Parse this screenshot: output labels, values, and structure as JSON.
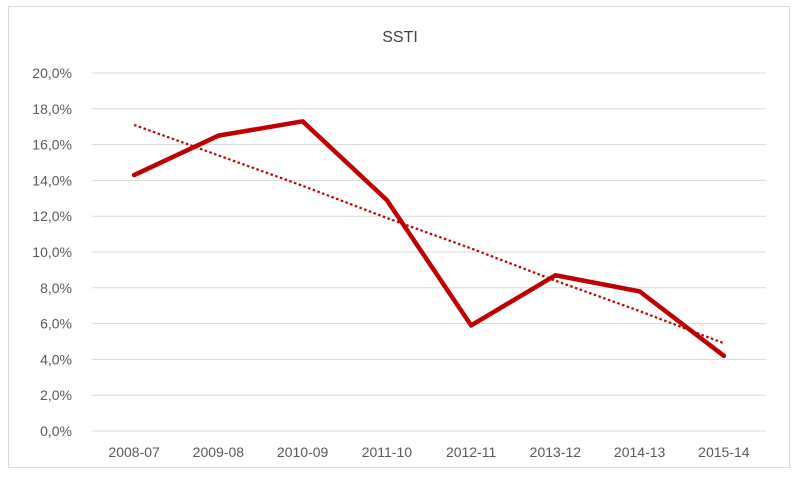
{
  "chart_data": {
    "type": "line",
    "title": "SSTI",
    "xlabel": "",
    "ylabel": "",
    "categories": [
      "2008-07",
      "2009-08",
      "2010-09",
      "2011-10",
      "2012-11",
      "2013-12",
      "2014-13",
      "2015-14"
    ],
    "series": [
      {
        "values": [
          14.3,
          16.5,
          17.3,
          12.9,
          5.9,
          8.7,
          7.8,
          4.2
        ],
        "color": "#c00000",
        "style": "solid"
      },
      {
        "values": [
          17.1,
          15.4,
          13.7,
          11.9,
          10.2,
          8.4,
          6.7,
          4.9
        ],
        "color": "#c00000",
        "style": "dotted"
      }
    ],
    "ylim": [
      0,
      20
    ],
    "yticks": [
      "0,0%",
      "2,0%",
      "4,0%",
      "6,0%",
      "8,0%",
      "10,0%",
      "12,0%",
      "14,0%",
      "16,0%",
      "18,0%",
      "20,0%"
    ],
    "grid": true,
    "legend": "none"
  }
}
